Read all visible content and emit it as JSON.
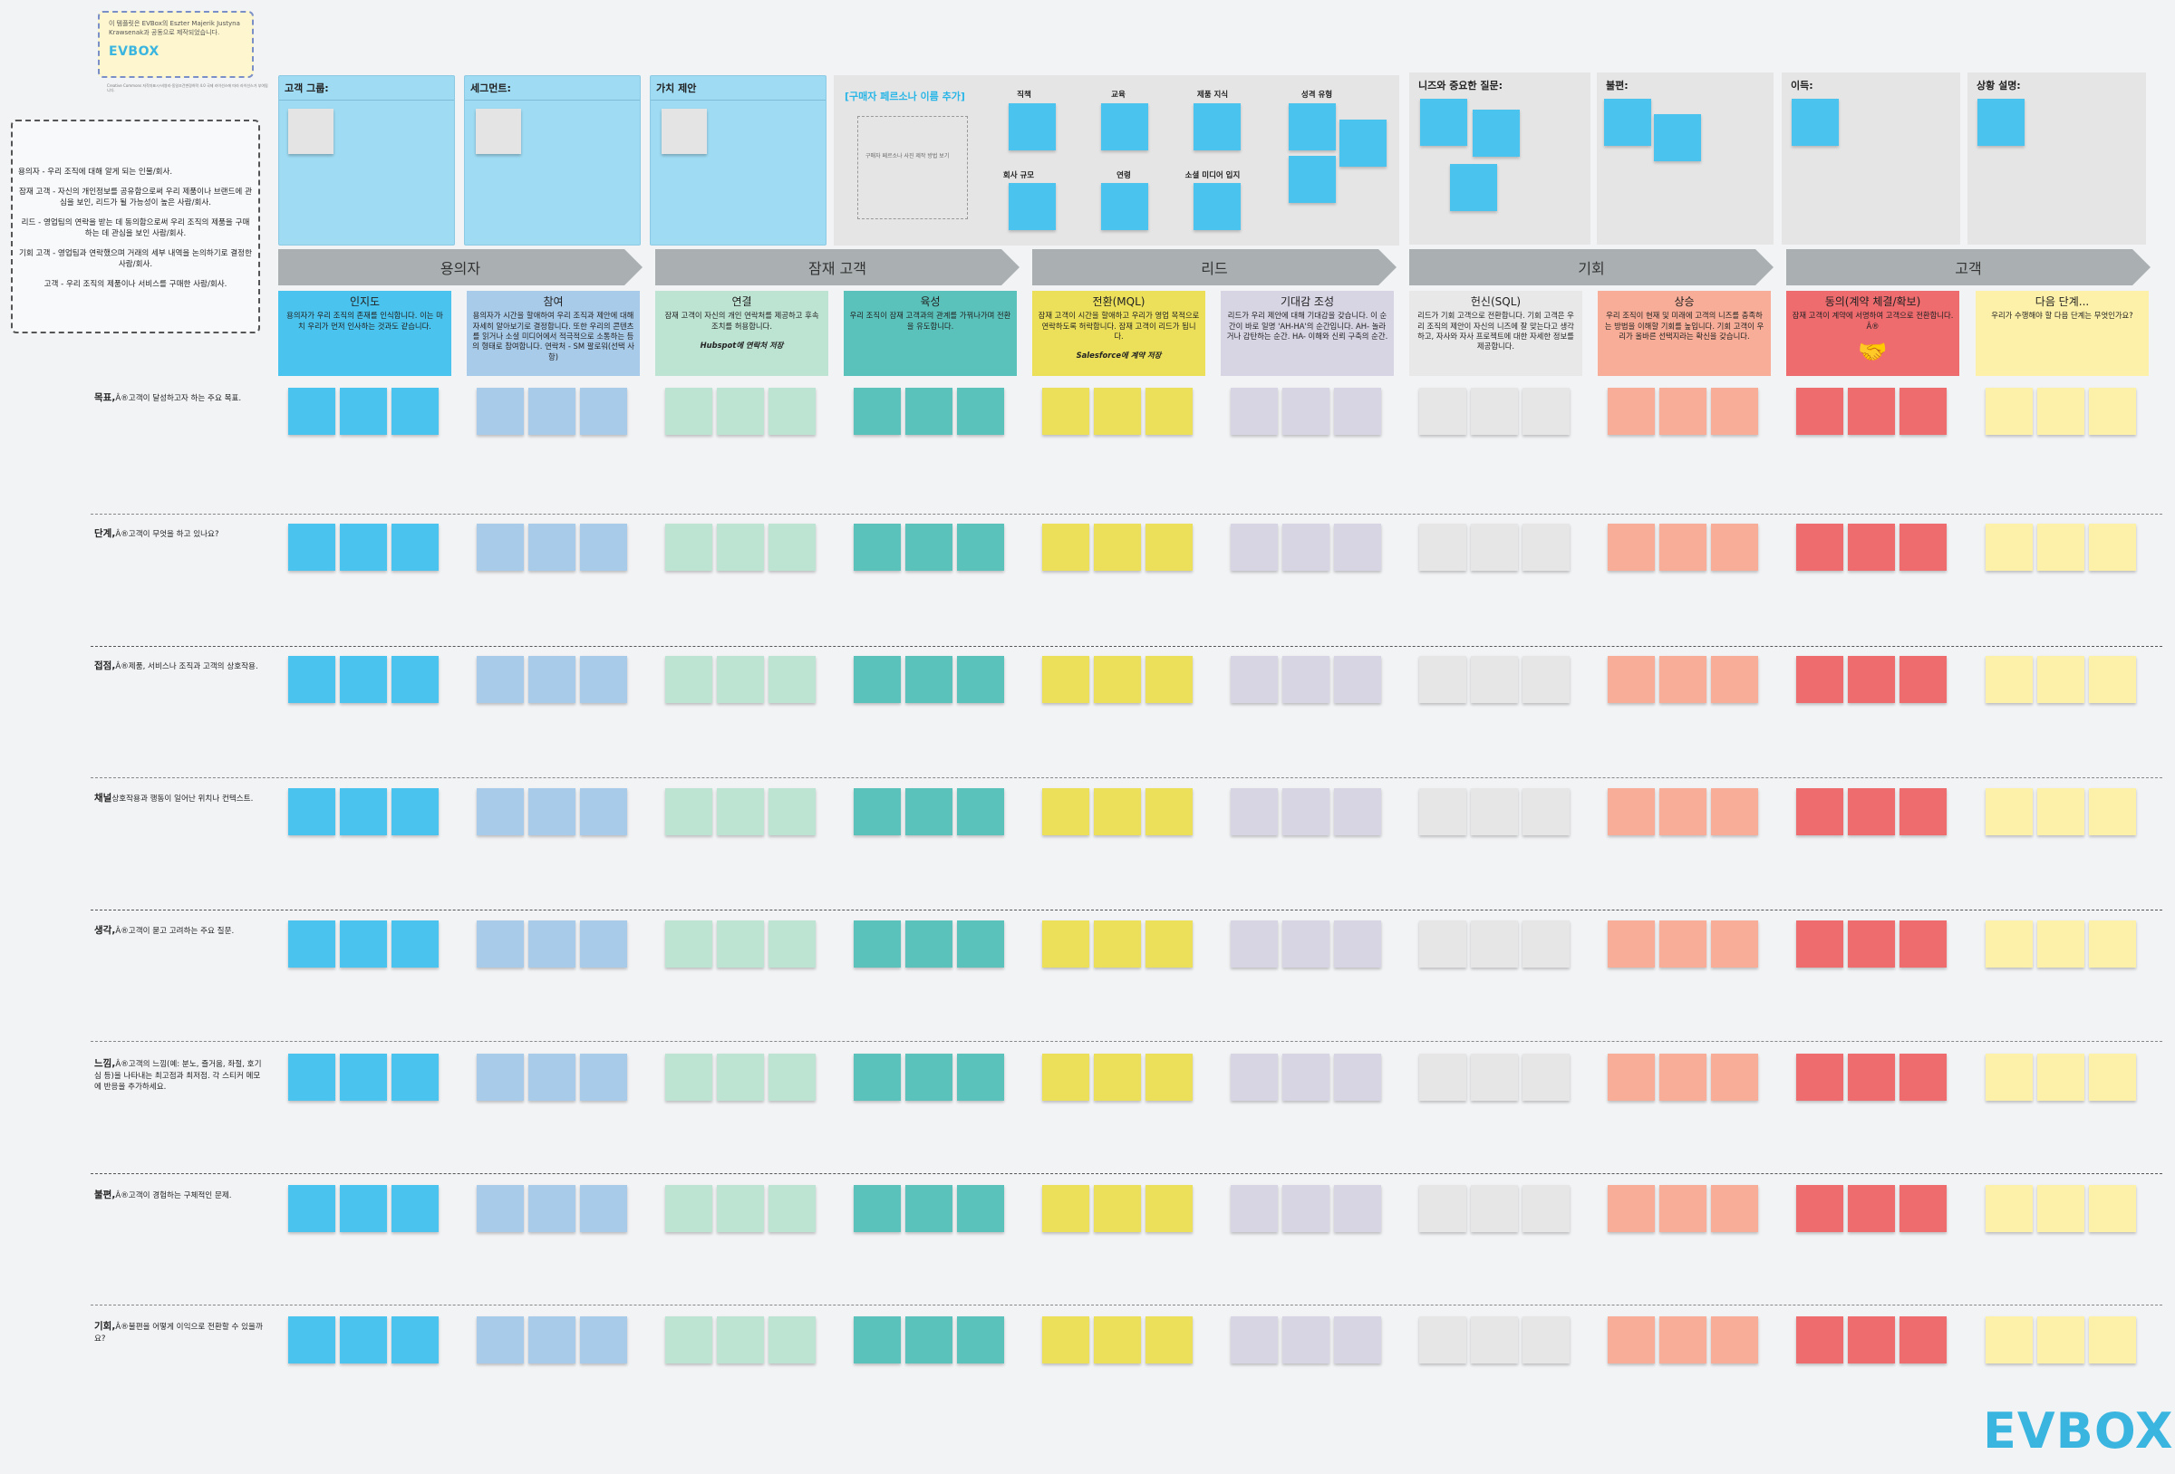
{
  "info_note": {
    "text": "이 템플릿은 EVBox의 Eszter Majerik Justyna Krawsenak과 공동으로 제작되었습니다.",
    "logo": "EVBOX",
    "license": "Creative Commons 저작자표시-비영리-동일조건변경허락 4.0 국제 라이선스에 따라 라이선스가 부여됩니다."
  },
  "definitions": [
    "용의자 - 우리 조직에 대해 알게 되는 인물/회사.",
    "잠재 고객 - 자신의 개인정보를 공유함으로써 우리 제품이나 브랜드에 관심을 보인, 리드가 될 가능성이 높은 사람/회사.",
    "리드 - 영업팀의 연락을 받는 데 동의함으로써 우리 조직의 제품을 구매하는 데 관심을 보인 사람/회사.",
    "기회 고객 - 영업팀과 연락했으며 거래의 세부 내역을 논의하기로 결정한 사람/회사.",
    "고객 - 우리 조직의 제품이나 서비스를 구매한 사람/회사."
  ],
  "headers": {
    "customer_group": "고객 그룹:",
    "segment": "세그먼트:",
    "value_proposition": "가치 제안",
    "persona_link": "[구매자 페르소나 이름 추가]",
    "persona_photo_hint": "구매자 페르소나 사진 제작 방법 보기",
    "persona_attrs": [
      "직책",
      "교육",
      "제품 지식",
      "성격 유형",
      "회사 규모",
      "연령",
      "소셜 미디어 입지"
    ],
    "needs": "니즈와 중요한 질문:",
    "pains": "불편:",
    "gains": "이득:",
    "context": "상황 설명:"
  },
  "phases": [
    "용의자",
    "잠재 고객",
    "리드",
    "기회",
    "고객"
  ],
  "stages": [
    {
      "title": "인지도",
      "desc": "용의자가 우리 조직의 존재를 인식합니다. 이는 마치 우리가 먼저 인사하는 것과도 같습니다.",
      "extra": ""
    },
    {
      "title": "참여",
      "desc": "용의자가 시간을 할애하여 우리 조직과 제안에 대해 자세히 알아보기로 결정합니다. 또한 우리의 콘텐츠를 읽거나 소셜 미디어에서 적극적으로 소통하는 등의 형태로 참여합니다. 연락처 - SM 팔로워(선택 사항)",
      "extra": ""
    },
    {
      "title": "연결",
      "desc": "잠재 고객이 자신의 개인 연락처를 제공하고 후속 조치를 허용합니다.",
      "extra": "Hubspot에 연락처 저장"
    },
    {
      "title": "육성",
      "desc": "우리 조직이 잠재 고객과의 관계를 가꿔나가며 전환을 유도합니다.",
      "extra": ""
    },
    {
      "title": "전환(MQL)",
      "desc": "잠재 고객이 시간을 할애하고 우리가 영업 목적으로 연락하도록 허락합니다. 잠재 고객이 리드가 됩니다.",
      "extra": "Salesforce에 계약 저장"
    },
    {
      "title": "기대감 조성",
      "desc": "리드가 우리 제안에 대해 기대감을 갖습니다. 이 순간이 바로 일명 'AH-HA'의 순간입니다. AH- 놀라거나 감탄하는 순간. HA- 이해와 신뢰 구축의 순간.",
      "extra": ""
    },
    {
      "title": "헌신(SQL)",
      "desc": "리드가 기회 고객으로 전환합니다. 기회 고객은 우리 조직의 제안이 자신의 니즈에 잘 맞는다고 생각하고, 자사와 자사 프로젝트에 대한 자세한 정보를 제공합니다.",
      "extra": ""
    },
    {
      "title": "상승",
      "desc": "우리 조직이 현재 및 미래에 고객의 니즈를 충족하는 방법을 이해할 기회를 높입니다. 기회 고객이 우리가 올바른 선택지라는 확신을 갖습니다.",
      "extra": ""
    },
    {
      "title": "동의(계약 체결/확보)",
      "desc": "잠재 고객이 계약에 서명하여 고객으로 전환합니다. Â®",
      "extra": ""
    },
    {
      "title": "다음 단계...",
      "desc": "우리가 수행해야 할 다음 단계는 무엇인가요?",
      "extra": ""
    }
  ],
  "rows": [
    {
      "label": "목표,",
      "desc": "Â®고객이 달성하고자 하는 주요 목표."
    },
    {
      "label": "단계,",
      "desc": "Â®고객이 무엇을 하고 있나요?"
    },
    {
      "label": "접점,",
      "desc": "Â®제품, 서비스나 조직과 고객의 상호작용."
    },
    {
      "label": "채널",
      "desc": "상호작용과 행동이 일어난 위치나 컨텍스트."
    },
    {
      "label": "생각,",
      "desc": "Â®고객이 묻고 고려하는 주요 질문."
    },
    {
      "label": "느낌,",
      "desc": "Â®고객의 느낌(예: 분노, 즐거움, 좌절, 호기심 등)을 나타내는 최고점과 최저점. 각 스티커 메모에 반응을 추가하세요."
    },
    {
      "label": "불편,",
      "desc": "Â®고객이 경험하는 구체적인 문제."
    },
    {
      "label": "기회,",
      "desc": "Â®불편을 어떻게 이익으로 전환할 수 있을까요?"
    }
  ],
  "colors": {
    "stage_bg": [
      "#4ac4ee",
      "#a9cbea",
      "#bde3d3",
      "#5bc2bb",
      "#ece05a",
      "#d7d4e4",
      "#e8e8e8",
      "#f7ad97",
      "#ee6b6e",
      "#fdf0a8"
    ],
    "sticky": [
      "#4ac4ee",
      "#a9cbea",
      "#bde3d3",
      "#5bc2bb",
      "#ece05a",
      "#d7d4e4",
      "#e6e6e6",
      "#f7ad97",
      "#ee6b6e",
      "#fdf0a8"
    ],
    "brand": "#3ab5e0"
  },
  "logo": "EVBOX"
}
